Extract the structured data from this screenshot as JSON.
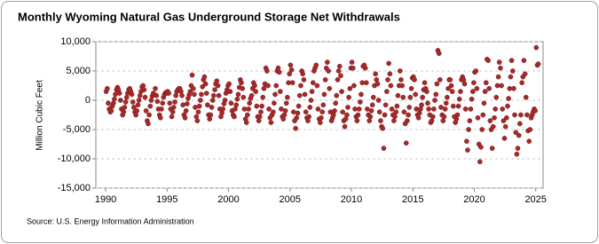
{
  "chart_data": {
    "type": "scatter",
    "title": "Monthly Wyoming Natural Gas Underground Storage Net Withdrawals",
    "y_label": "Million Cubic Feet",
    "source": "Source: U.S. Energy Information Administration",
    "color": "#a52a2a",
    "grid": true,
    "xlim": [
      1989.2,
      2025.6
    ],
    "xticks": [
      1990,
      1995,
      2000,
      2005,
      2010,
      2015,
      2020,
      2025
    ],
    "ylim": [
      -15000,
      10000
    ],
    "yticks": [
      {
        "value": -15000,
        "label": "-15,000"
      },
      {
        "value": -10000,
        "label": "-10,000"
      },
      {
        "value": -5000,
        "label": "-5,000"
      },
      0,
      {
        "value": 5000,
        "label": "5,000"
      },
      {
        "value": 10000,
        "label": "10,000"
      }
    ],
    "x": [
      1990.04,
      1990.13,
      1990.21,
      1990.29,
      1990.38,
      1990.46,
      1990.54,
      1990.63,
      1990.71,
      1990.79,
      1990.88,
      1990.96,
      1991.04,
      1991.13,
      1991.21,
      1991.29,
      1991.38,
      1991.46,
      1991.54,
      1991.63,
      1991.71,
      1991.79,
      1991.88,
      1991.96,
      1992.04,
      1992.13,
      1992.21,
      1992.29,
      1992.38,
      1992.46,
      1992.54,
      1992.63,
      1992.71,
      1992.79,
      1992.88,
      1992.96,
      1993.04,
      1993.13,
      1993.21,
      1993.29,
      1993.38,
      1993.46,
      1993.54,
      1993.63,
      1993.71,
      1993.79,
      1993.88,
      1993.96,
      1994.04,
      1994.13,
      1994.21,
      1994.29,
      1994.38,
      1994.46,
      1994.54,
      1994.63,
      1994.71,
      1994.79,
      1994.88,
      1994.96,
      1995.04,
      1995.13,
      1995.21,
      1995.29,
      1995.38,
      1995.46,
      1995.54,
      1995.63,
      1995.71,
      1995.79,
      1995.88,
      1995.96,
      1996.04,
      1996.13,
      1996.21,
      1996.29,
      1996.38,
      1996.46,
      1996.54,
      1996.63,
      1996.71,
      1996.79,
      1996.88,
      1996.96,
      1997.04,
      1997.13,
      1997.21,
      1997.29,
      1997.38,
      1997.46,
      1997.54,
      1997.63,
      1997.71,
      1997.79,
      1997.88,
      1997.96,
      1998.04,
      1998.13,
      1998.21,
      1998.29,
      1998.38,
      1998.46,
      1998.54,
      1998.63,
      1998.71,
      1998.79,
      1998.88,
      1998.96,
      1999.04,
      1999.13,
      1999.21,
      1999.29,
      1999.38,
      1999.46,
      1999.54,
      1999.63,
      1999.71,
      1999.79,
      1999.88,
      1999.96,
      2000.04,
      2000.13,
      2000.21,
      2000.29,
      2000.38,
      2000.46,
      2000.54,
      2000.63,
      2000.71,
      2000.79,
      2000.88,
      2000.96,
      2001.04,
      2001.13,
      2001.21,
      2001.29,
      2001.38,
      2001.46,
      2001.54,
      2001.63,
      2001.71,
      2001.79,
      2001.88,
      2001.96,
      2002.04,
      2002.13,
      2002.21,
      2002.29,
      2002.38,
      2002.46,
      2002.54,
      2002.63,
      2002.71,
      2002.79,
      2002.88,
      2002.96,
      2003.04,
      2003.13,
      2003.21,
      2003.29,
      2003.38,
      2003.46,
      2003.54,
      2003.63,
      2003.71,
      2003.79,
      2003.88,
      2003.96,
      2004.04,
      2004.13,
      2004.21,
      2004.29,
      2004.38,
      2004.46,
      2004.54,
      2004.63,
      2004.71,
      2004.79,
      2004.88,
      2004.96,
      2005.04,
      2005.13,
      2005.21,
      2005.29,
      2005.38,
      2005.46,
      2005.54,
      2005.63,
      2005.71,
      2005.79,
      2005.88,
      2005.96,
      2006.04,
      2006.13,
      2006.21,
      2006.29,
      2006.38,
      2006.46,
      2006.54,
      2006.63,
      2006.71,
      2006.79,
      2006.88,
      2006.96,
      2007.04,
      2007.13,
      2007.21,
      2007.29,
      2007.38,
      2007.46,
      2007.54,
      2007.63,
      2007.71,
      2007.79,
      2007.88,
      2007.96,
      2008.04,
      2008.13,
      2008.21,
      2008.29,
      2008.38,
      2008.46,
      2008.54,
      2008.63,
      2008.71,
      2008.79,
      2008.88,
      2008.96,
      2009.04,
      2009.13,
      2009.21,
      2009.29,
      2009.38,
      2009.46,
      2009.54,
      2009.63,
      2009.71,
      2009.79,
      2009.88,
      2009.96,
      2010.04,
      2010.13,
      2010.21,
      2010.29,
      2010.38,
      2010.46,
      2010.54,
      2010.63,
      2010.71,
      2010.79,
      2010.88,
      2010.96,
      2011.04,
      2011.13,
      2011.21,
      2011.29,
      2011.38,
      2011.46,
      2011.54,
      2011.63,
      2011.71,
      2011.79,
      2011.88,
      2011.96,
      2012.04,
      2012.13,
      2012.21,
      2012.29,
      2012.38,
      2012.46,
      2012.54,
      2012.63,
      2012.71,
      2012.79,
      2012.88,
      2012.96,
      2013.04,
      2013.13,
      2013.21,
      2013.29,
      2013.38,
      2013.46,
      2013.54,
      2013.63,
      2013.71,
      2013.79,
      2013.88,
      2013.96,
      2014.04,
      2014.13,
      2014.21,
      2014.29,
      2014.38,
      2014.46,
      2014.54,
      2014.63,
      2014.71,
      2014.79,
      2014.88,
      2014.96,
      2015.04,
      2015.13,
      2015.21,
      2015.29,
      2015.38,
      2015.46,
      2015.54,
      2015.63,
      2015.71,
      2015.79,
      2015.88,
      2015.96,
      2016.04,
      2016.13,
      2016.21,
      2016.29,
      2016.38,
      2016.46,
      2016.54,
      2016.63,
      2016.71,
      2016.79,
      2016.88,
      2016.96,
      2017.04,
      2017.13,
      2017.21,
      2017.29,
      2017.38,
      2017.46,
      2017.54,
      2017.63,
      2017.71,
      2017.79,
      2017.88,
      2017.96,
      2018.04,
      2018.13,
      2018.21,
      2018.29,
      2018.38,
      2018.46,
      2018.54,
      2018.63,
      2018.71,
      2018.79,
      2018.88,
      2018.96,
      2019.04,
      2019.13,
      2019.21,
      2019.29,
      2019.38,
      2019.46,
      2019.54,
      2019.63,
      2019.71,
      2019.79,
      2019.88,
      2019.96,
      2020.04,
      2020.13,
      2020.21,
      2020.29,
      2020.38,
      2020.46,
      2020.54,
      2020.63,
      2020.71,
      2020.79,
      2020.88,
      2020.96,
      2021.04,
      2021.13,
      2021.21,
      2021.29,
      2021.38,
      2021.46,
      2021.54,
      2021.63,
      2021.71,
      2021.79,
      2021.88,
      2021.96,
      2022.04,
      2022.13,
      2022.21,
      2022.29,
      2022.38,
      2022.46,
      2022.54,
      2022.63,
      2022.71,
      2022.79,
      2022.88,
      2022.96,
      2023.04,
      2023.13,
      2023.21,
      2023.29,
      2023.38,
      2023.46,
      2023.54,
      2023.63,
      2023.71,
      2023.79,
      2023.88,
      2023.96,
      2024.04,
      2024.13,
      2024.21,
      2024.29,
      2024.38,
      2024.46,
      2024.54,
      2024.63,
      2024.71,
      2024.79,
      2024.88,
      2024.96,
      2025.04,
      2025.13,
      2025.21
    ],
    "values": [
      1500,
      2000,
      -500,
      -1500,
      -2000,
      -1800,
      -1000,
      -500,
      200,
      1000,
      1800,
      2200,
      1800,
      1200,
      0,
      -1500,
      -2500,
      -2000,
      -1200,
      -300,
      500,
      1200,
      1800,
      2000,
      1500,
      1000,
      -300,
      -1200,
      -2000,
      -2500,
      -1800,
      -800,
      0,
      800,
      1500,
      2300,
      2500,
      1800,
      500,
      -1800,
      -3500,
      -4000,
      -2500,
      -1000,
      0,
      700,
      1200,
      1000,
      2000,
      800,
      -200,
      -1500,
      -2500,
      -3000,
      -1500,
      -500,
      500,
      1000,
      1300,
      1200,
      1500,
      1200,
      -500,
      -1500,
      -2800,
      -2000,
      -1200,
      -300,
      800,
      1500,
      1800,
      2000,
      2000,
      1500,
      800,
      -800,
      -2500,
      -3000,
      -1800,
      -600,
      300,
      900,
      1500,
      2500,
      4300,
      2000,
      1000,
      -1200,
      -2800,
      -3500,
      -2000,
      -1000,
      0,
      1000,
      2300,
      3500,
      4000,
      2800,
      1200,
      -800,
      -2500,
      -3200,
      -2500,
      -1200,
      0,
      800,
      1800,
      2800,
      3300,
      2500,
      800,
      -1500,
      -2800,
      -2200,
      -1500,
      -600,
      0,
      1200,
      1800,
      2500,
      2800,
      1500,
      -500,
      -1800,
      -2500,
      -2800,
      -1500,
      -800,
      200,
      1000,
      2200,
      3500,
      3000,
      2000,
      500,
      -1500,
      -3200,
      -3800,
      -2500,
      -1500,
      -500,
      300,
      800,
      2000,
      3000,
      2500,
      1500,
      -1000,
      -2800,
      -3500,
      -2800,
      -2000,
      -1000,
      500,
      2000,
      2800,
      5500,
      5000,
      2500,
      -1500,
      -3000,
      -3800,
      -2500,
      -2000,
      -500,
      1000,
      2500,
      5000,
      5500,
      4800,
      1500,
      -1500,
      -2800,
      -3200,
      -2500,
      -1800,
      -500,
      500,
      3000,
      4500,
      6000,
      5200,
      3000,
      -2000,
      -3500,
      -4800,
      -3000,
      -2200,
      -1000,
      800,
      2500,
      5000,
      4500,
      3500,
      1000,
      -2000,
      -3000,
      -3500,
      -2800,
      -1200,
      0,
      1500,
      3000,
      5000,
      5500,
      6000,
      2500,
      -1500,
      -3200,
      -3800,
      -3000,
      -2000,
      -800,
      1000,
      3500,
      5500,
      6500,
      5000,
      2000,
      -2000,
      -3500,
      -3000,
      -2500,
      -1800,
      -500,
      800,
      3500,
      5000,
      5800,
      4200,
      1500,
      -2000,
      -3500,
      -4500,
      -3200,
      -2500,
      -1200,
      500,
      2000,
      5500,
      6500,
      5500,
      2500,
      -1500,
      -2800,
      -3500,
      -2500,
      -1500,
      -300,
      1000,
      3000,
      5800,
      6000,
      5500,
      3000,
      -1500,
      -2500,
      -3500,
      -2800,
      -1800,
      -800,
      500,
      2500,
      4500,
      3500,
      2800,
      0,
      -2000,
      -3500,
      -4500,
      -4800,
      -8200,
      -2500,
      -800,
      1500,
      3500,
      6300,
      4500,
      2500,
      -1500,
      -2500,
      -3500,
      -2800,
      -2000,
      -1000,
      800,
      2500,
      5000,
      3500,
      2500,
      500,
      -2000,
      -4000,
      -7300,
      -3500,
      -2500,
      -1200,
      500,
      2000,
      3800,
      4000,
      3500,
      1000,
      -1500,
      -2500,
      -3000,
      -2200,
      -1500,
      -800,
      500,
      1800,
      3000,
      2000,
      1500,
      -500,
      -1500,
      -2500,
      -3800,
      -3500,
      -2800,
      -1500,
      0,
      1000,
      2800,
      8500,
      8000,
      3500,
      -1200,
      -2500,
      -3500,
      -2800,
      -1500,
      -500,
      500,
      2000,
      3500,
      3500,
      2500,
      1500,
      -1000,
      -2800,
      -3800,
      -3200,
      -2500,
      -1000,
      200,
      1500,
      3500,
      4000,
      3500,
      2800,
      -1500,
      -7000,
      -8500,
      -5000,
      -3500,
      -1500,
      200,
      1500,
      3000,
      4800,
      5000,
      2000,
      -3000,
      -7500,
      -10500,
      -8000,
      -5000,
      -2500,
      -500,
      1500,
      3000,
      7000,
      6800,
      2000,
      -3500,
      -5000,
      -8200,
      -4500,
      -3000,
      -1500,
      500,
      2500,
      4000,
      6500,
      5500,
      2500,
      -1500,
      -3500,
      -6500,
      -4500,
      -3000,
      -1000,
      300,
      2000,
      4000,
      6800,
      5000,
      2000,
      -2500,
      -5500,
      -9200,
      -8200,
      -6000,
      -4000,
      -2500,
      3000,
      4000,
      6800,
      4500,
      500,
      -2500,
      -5200,
      -7000,
      -5000,
      -3000,
      -2500,
      -2000,
      -1500,
      -1800,
      9000,
      6000,
      6200
    ]
  }
}
